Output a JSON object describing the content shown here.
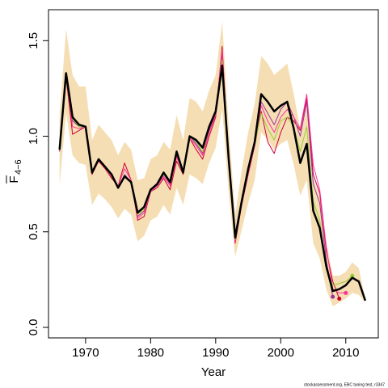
{
  "chart_data": {
    "type": "line",
    "xlabel": "Year",
    "ylabel": {
      "main": "F",
      "sub": "4−6"
    },
    "footnote": "stockassessment.org, EBC tuning test, r3347",
    "x": [
      1966,
      1967,
      1968,
      1969,
      1970,
      1971,
      1972,
      1973,
      1974,
      1975,
      1976,
      1977,
      1978,
      1979,
      1980,
      1981,
      1982,
      1983,
      1984,
      1985,
      1986,
      1987,
      1988,
      1989,
      1990,
      1991,
      1992,
      1993,
      1994,
      1995,
      1996,
      1997,
      1998,
      1999,
      2000,
      2001,
      2002,
      2003,
      2004,
      2005,
      2006,
      2007,
      2008,
      2009,
      2010,
      2011,
      2012,
      2013
    ],
    "band": {
      "color": "#f5deb3",
      "upper": [
        1.1,
        1.56,
        1.32,
        1.26,
        1.26,
        0.98,
        1.06,
        1.02,
        0.98,
        0.9,
        0.97,
        0.93,
        0.77,
        0.78,
        0.88,
        0.9,
        0.97,
        0.93,
        1.11,
        0.98,
        1.2,
        1.18,
        1.13,
        1.24,
        1.32,
        1.6,
        1.05,
        0.59,
        0.82,
        1.02,
        1.17,
        1.42,
        1.38,
        1.32,
        1.35,
        1.38,
        1.22,
        1.04,
        1.16,
        0.78,
        0.68,
        0.45,
        0.27,
        0.27,
        0.29,
        0.34,
        0.31,
        0.15
      ],
      "lower": [
        0.74,
        1.12,
        0.9,
        0.86,
        0.85,
        0.64,
        0.7,
        0.67,
        0.63,
        0.57,
        0.62,
        0.59,
        0.45,
        0.48,
        0.56,
        0.58,
        0.64,
        0.59,
        0.73,
        0.64,
        0.8,
        0.78,
        0.75,
        0.86,
        0.94,
        1.14,
        0.71,
        0.37,
        0.51,
        0.65,
        0.77,
        1.02,
        0.98,
        0.93,
        0.96,
        0.98,
        0.85,
        0.69,
        0.77,
        0.44,
        0.36,
        0.2,
        0.11,
        0.13,
        0.15,
        0.18,
        0.17,
        0.13
      ]
    },
    "series": [
      {
        "color": "#cc0033",
        "width": 1,
        "end_dot": true,
        "values": [
          0.92,
          1.31,
          1.01,
          1.03,
          1.05,
          0.8,
          0.87,
          0.83,
          0.78,
          0.74,
          0.86,
          0.77,
          0.56,
          0.58,
          0.71,
          0.73,
          0.78,
          0.72,
          0.87,
          0.8,
          0.99,
          0.93,
          0.88,
          1.0,
          1.1,
          1.47,
          0.86,
          0.44,
          0.64,
          0.8,
          0.95,
          1.13,
          0.97,
          0.91,
          1.02,
          1.1,
          1.08,
          1.03,
          1.2,
          0.8,
          0.7,
          0.4,
          0.24,
          0.15,
          null,
          null,
          null,
          null
        ]
      },
      {
        "color": "#993399",
        "width": 1,
        "end_dot": true,
        "values": [
          0.93,
          1.32,
          1.08,
          1.05,
          1.05,
          0.81,
          0.88,
          0.84,
          0.79,
          0.73,
          0.8,
          0.76,
          0.58,
          0.61,
          0.72,
          0.74,
          0.8,
          0.75,
          0.9,
          0.81,
          1.0,
          0.96,
          0.91,
          1.03,
          1.12,
          1.42,
          0.87,
          0.45,
          0.65,
          0.82,
          0.96,
          1.18,
          1.12,
          1.06,
          1.14,
          1.18,
          1.1,
          1.0,
          1.18,
          0.75,
          0.65,
          0.35,
          0.16,
          null,
          null,
          null,
          null,
          null
        ]
      },
      {
        "color": "#ff3399",
        "width": 1,
        "end_dot": true,
        "values": [
          0.93,
          1.32,
          1.05,
          1.04,
          1.05,
          0.81,
          0.88,
          0.84,
          0.79,
          0.74,
          0.83,
          0.77,
          0.57,
          0.6,
          0.71,
          0.74,
          0.79,
          0.74,
          0.89,
          0.81,
          0.99,
          0.95,
          0.9,
          1.02,
          1.11,
          1.45,
          0.87,
          0.45,
          0.65,
          0.81,
          0.95,
          1.16,
          1.08,
          1.02,
          1.1,
          1.14,
          1.1,
          1.04,
          1.22,
          0.85,
          0.72,
          0.42,
          0.2,
          0.18,
          0.18,
          null,
          null,
          null
        ]
      },
      {
        "color": "#99cc33",
        "width": 1,
        "end_dot": true,
        "values": [
          0.93,
          1.33,
          1.09,
          1.05,
          1.05,
          0.81,
          0.88,
          0.84,
          0.8,
          0.73,
          0.79,
          0.76,
          0.59,
          0.62,
          0.72,
          0.75,
          0.8,
          0.76,
          0.91,
          0.81,
          1.0,
          0.97,
          0.92,
          1.04,
          1.13,
          1.4,
          0.88,
          0.46,
          0.66,
          0.83,
          0.96,
          1.12,
          1.04,
          0.98,
          1.08,
          1.1,
          1.05,
          0.92,
          1.05,
          0.66,
          0.56,
          0.3,
          0.22,
          0.23,
          0.24,
          0.27,
          null,
          null
        ]
      },
      {
        "color": "#000000",
        "width": 2.5,
        "end_dot": false,
        "values": [
          0.93,
          1.33,
          1.1,
          1.06,
          1.05,
          0.81,
          0.88,
          0.84,
          0.8,
          0.73,
          0.79,
          0.76,
          0.6,
          0.63,
          0.72,
          0.75,
          0.81,
          0.76,
          0.92,
          0.81,
          1.0,
          0.98,
          0.94,
          1.05,
          1.13,
          1.37,
          0.88,
          0.47,
          0.66,
          0.83,
          0.97,
          1.22,
          1.18,
          1.13,
          1.16,
          1.18,
          1.04,
          0.86,
          0.96,
          0.61,
          0.52,
          0.32,
          0.19,
          0.2,
          0.22,
          0.26,
          0.24,
          0.14
        ]
      }
    ],
    "xlim": [
      1964.3,
      2015.0
    ],
    "ylim": [
      -0.055,
      1.662
    ],
    "xticks": [
      1970,
      1980,
      1990,
      2000,
      2010
    ],
    "yticks": [
      {
        "value": 0,
        "label": "0.0"
      },
      0.5,
      {
        "value": 1,
        "label": "1.0"
      },
      1.5
    ]
  }
}
